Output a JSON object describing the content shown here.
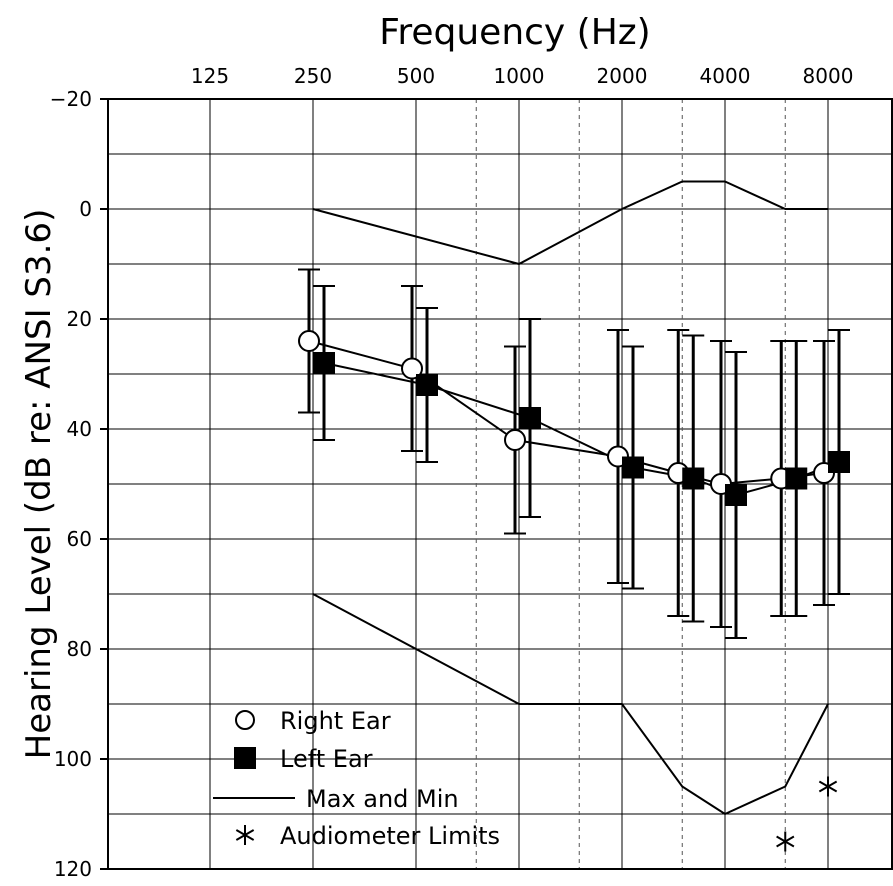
{
  "chart_data": {
    "type": "line",
    "xlabel": "Frequency (Hz)",
    "ylabel": "Hearing Level (dB re: ANSI S3.6)",
    "x_tick_labels": [
      "125",
      "250",
      "500",
      "1000",
      "2000",
      "4000",
      "8000"
    ],
    "x_scale": "log2",
    "x_range": [
      125,
      8000
    ],
    "ylim": [
      -20,
      120
    ],
    "y_inverted": true,
    "y_ticks": [
      -20,
      0,
      20,
      40,
      60,
      80,
      100,
      120
    ],
    "y_tick_labels": [
      "-20",
      "0",
      "20",
      "40",
      "60",
      "80",
      "100",
      "120"
    ],
    "grid": true,
    "legend_position": "bottom-left",
    "series": [
      {
        "name": "Right Ear",
        "marker": "open-circle",
        "x": [
          250,
          500,
          1000,
          2000,
          3000,
          4000,
          6000,
          8000
        ],
        "y": [
          24,
          29,
          42,
          45,
          48,
          50,
          49,
          48
        ],
        "error_low": [
          11,
          14,
          25,
          22,
          22,
          24,
          24,
          24
        ],
        "error_high": [
          37,
          44,
          59,
          68,
          74,
          76,
          74,
          72
        ]
      },
      {
        "name": "Left Ear",
        "marker": "filled-square",
        "x": [
          250,
          500,
          1000,
          2000,
          3000,
          4000,
          6000,
          8000
        ],
        "y": [
          28,
          32,
          38,
          47,
          49,
          52,
          49,
          46
        ],
        "error_low": [
          14,
          18,
          20,
          25,
          23,
          26,
          24,
          22
        ],
        "error_high": [
          42,
          46,
          56,
          69,
          75,
          78,
          74,
          70
        ]
      },
      {
        "name": "Max and Min",
        "style": "solid-line",
        "upper": {
          "x": [
            250,
            1000,
            2000,
            3000,
            4000,
            6000,
            8000
          ],
          "y": [
            0,
            10,
            0,
            -5,
            -5,
            0,
            0
          ]
        },
        "lower": {
          "x": [
            250,
            1000,
            2000,
            3000,
            4000,
            6000,
            8000
          ],
          "y": [
            70,
            90,
            90,
            105,
            110,
            105,
            90
          ]
        }
      },
      {
        "name": "Audiometer Limits",
        "marker": "asterisk",
        "x": [
          6000,
          8000
        ],
        "y": [
          115,
          105
        ]
      }
    ],
    "legend": [
      "Right Ear",
      "Left Ear",
      "Max and Min",
      "Audiometer Limits"
    ]
  }
}
